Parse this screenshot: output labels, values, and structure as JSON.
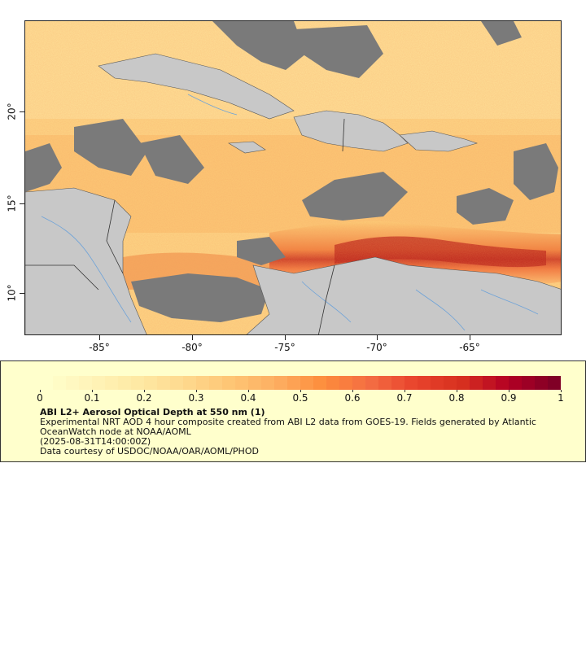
{
  "map": {
    "longitude_labels": [
      "-85°",
      "-80°",
      "-75°",
      "-70°",
      "-65°"
    ],
    "latitude_labels": [
      "20°",
      "15°",
      "10°"
    ],
    "colors": {
      "land": "#7a7a7a",
      "land_cloud_free": "#c8c8c8",
      "rivers": "#6fa3d8",
      "borders": "#444444"
    }
  },
  "legend": {
    "colorbar_labels": [
      "0",
      "0.1",
      "0.2",
      "0.3",
      "0.4",
      "0.5",
      "0.6",
      "0.7",
      "0.8",
      "0.9",
      "1"
    ],
    "colorbar_colors": [
      "#ffffcc",
      "#fff3b8",
      "#fee9a3",
      "#fed98e",
      "#fec574",
      "#fdae61",
      "#fd8d3c",
      "#f46d43",
      "#e8432c",
      "#d7301f",
      "#b30024",
      "#800026"
    ],
    "title": "ABI L2+ Aerosol Optical Depth at 550 nm (1)",
    "line1": "Experimental NRT AOD 4 hour composite created from ABI L2 data from GOES-19. Fields generated by Atlantic",
    "line2": "OceanWatch node at NOAA/AOML",
    "line3": "(2025-08-31T14:00:00Z)",
    "line4": "Data courtesy of USDOC/NOAA/OAR/AOML/PHOD"
  }
}
